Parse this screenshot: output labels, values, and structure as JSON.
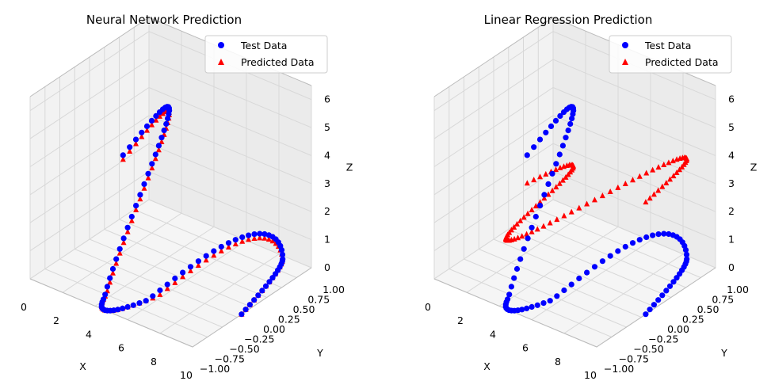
{
  "chart_data": [
    {
      "type": "scatter",
      "title": "Neural Network Prediction",
      "xlabel": "X",
      "ylabel": "Y",
      "zlabel": "Z",
      "xlim": [
        0,
        10
      ],
      "ylim": [
        -1,
        1
      ],
      "zlim": [
        0,
        6.5
      ],
      "x_ticks": [
        "0",
        "2",
        "4",
        "6",
        "8",
        "10"
      ],
      "y_ticks": [
        "−1.00",
        "−0.75",
        "−0.50",
        "−0.25",
        "0.00",
        "0.25",
        "0.50",
        "0.75",
        "1.00"
      ],
      "z_ticks": [
        "0",
        "1",
        "2",
        "3",
        "4",
        "5",
        "6"
      ],
      "grid": true,
      "legend_position": "upper right",
      "series": [
        {
          "name": "Test Data",
          "marker": "circle",
          "color": "#0000ff",
          "curve": "test_data"
        },
        {
          "name": "Predicted Data",
          "marker": "triangle",
          "color": "#ff0000",
          "curve": "nn_fit"
        }
      ]
    },
    {
      "type": "scatter",
      "title": "Linear Regression Prediction",
      "xlabel": "X",
      "ylabel": "Y",
      "zlabel": "Z",
      "xlim": [
        0,
        10
      ],
      "ylim": [
        -1,
        1
      ],
      "zlim": [
        0,
        6.5
      ],
      "x_ticks": [
        "0",
        "2",
        "4",
        "6",
        "8",
        "10"
      ],
      "y_ticks": [
        "−1.00",
        "−0.75",
        "−0.50",
        "−0.25",
        "0.00",
        "0.25",
        "0.50",
        "0.75",
        "1.00"
      ],
      "z_ticks": [
        "0",
        "1",
        "2",
        "3",
        "4",
        "5",
        "6"
      ],
      "grid": true,
      "legend_position": "upper right",
      "series": [
        {
          "name": "Test Data",
          "marker": "circle",
          "color": "#0000ff",
          "curve": "test_data"
        },
        {
          "name": "Predicted Data",
          "marker": "triangle",
          "color": "#ff0000",
          "curve": "linear_fit"
        }
      ]
    }
  ]
}
